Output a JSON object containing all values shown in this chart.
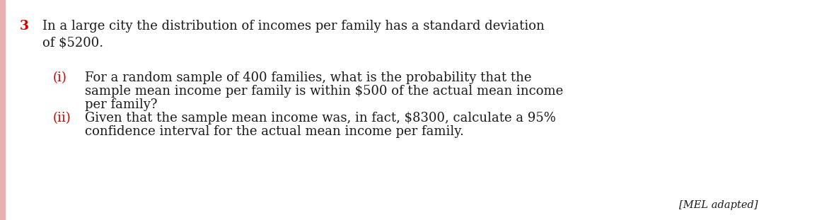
{
  "background_color": "#ffffff",
  "left_bar_color": "#e8b0b0",
  "question_number": "3",
  "question_number_color": "#cc0000",
  "question_number_fontsize": 13.5,
  "main_text_color": "#1a1a1a",
  "label_color": "#cc0000",
  "body_fontsize": 13.0,
  "label_fontsize": 13.0,
  "line1": "In a large city the distribution of incomes per family has a standard deviation",
  "line2": "of $5200.",
  "part_i_label": "(i)",
  "part_i_line1": "For a random sample of 400 families, what is the probability that the",
  "part_i_line2": "sample mean income per family is within $500 of the actual mean income",
  "part_i_line3": "per family?",
  "part_ii_label": "(ii)",
  "part_ii_line1": "Given that the sample mean income was, in fact, $8300, calculate a 95%",
  "part_ii_line2": "confidence interval for the actual mean income per family.",
  "footer": "[MEL adapted]"
}
